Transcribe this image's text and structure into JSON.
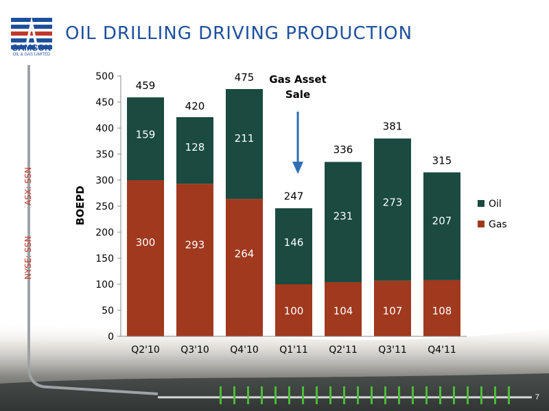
{
  "slide": {
    "title": "OIL DRILLING DRIVING PRODUCTION",
    "logo_text": "SAMSON",
    "logo_subtext": "OIL & GAS LIMITED",
    "side_labels": [
      "ASX: SSN",
      "NYSE: SSN"
    ],
    "page_number": "7"
  },
  "annotation": {
    "line1": "Gas Asset",
    "line2": "Sale",
    "arrow_color": "#2f6eb5"
  },
  "colors": {
    "oil": "#1a4a40",
    "gas": "#a0391e",
    "title": "#1d4f9c",
    "side": "#c0392b"
  },
  "chart_data": {
    "type": "bar",
    "stacked": true,
    "categories": [
      "Q2'10",
      "Q3'10",
      "Q4'10",
      "Q1'11",
      "Q2'11",
      "Q3'11",
      "Q4'11"
    ],
    "series": [
      {
        "name": "Gas",
        "values": [
          300,
          293,
          264,
          100,
          104,
          107,
          108
        ]
      },
      {
        "name": "Oil",
        "values": [
          159,
          128,
          211,
          146,
          231,
          273,
          207
        ]
      }
    ],
    "totals": [
      459,
      420,
      475,
      247,
      336,
      381,
      315
    ],
    "ylabel": "BOEPD",
    "ylim": [
      0,
      500
    ],
    "yticks": [
      0,
      50,
      100,
      150,
      200,
      250,
      300,
      350,
      400,
      450,
      500
    ],
    "legend_position": "right",
    "legend_order": [
      "Oil",
      "Gas"
    ]
  }
}
